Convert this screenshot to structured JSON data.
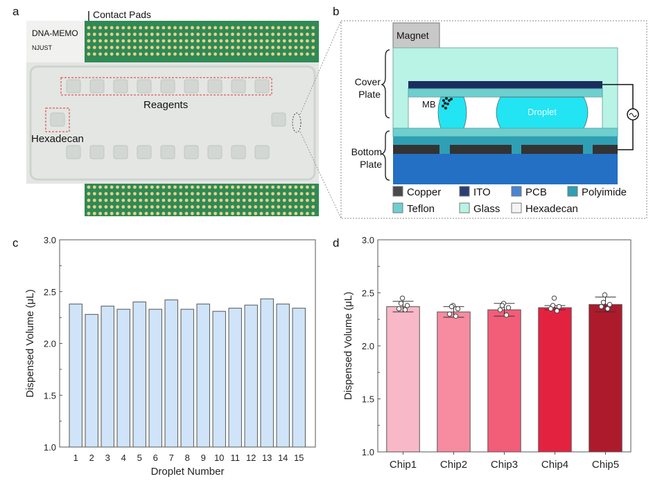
{
  "panels": {
    "a": {
      "label": "a",
      "chip_label_line1": "DNA-MEMO",
      "chip_label_line2": "NJUST",
      "annotations": {
        "contact_pads": "Contact Pads",
        "reagents": "Reagents",
        "hexadecan": "Hexadecan"
      }
    },
    "b": {
      "label": "b",
      "magnet": "Magnet",
      "cover_plate_1": "Cover",
      "cover_plate_2": "Plate",
      "bottom_plate_1": "Bottom",
      "bottom_plate_2": "Plate",
      "mb": "MB",
      "droplet": "Droplet",
      "legend": [
        {
          "label": "Copper",
          "color": "#4a4a4a"
        },
        {
          "label": "ITO",
          "color": "#2b3f73"
        },
        {
          "label": "PCB",
          "color": "#4a86d0"
        },
        {
          "label": "Polyimide",
          "color": "#2f9fb3"
        },
        {
          "label": "Teflon",
          "color": "#6fcfcf"
        },
        {
          "label": "Glass",
          "color": "#b8f3e6"
        },
        {
          "label": "Hexadecan",
          "color": "#f4f4f4"
        }
      ]
    },
    "c": {
      "label": "c"
    },
    "d": {
      "label": "d"
    }
  },
  "chart_data": [
    {
      "type": "bar",
      "panel": "c",
      "title": "",
      "xlabel": "Droplet Number",
      "ylabel": "Dispensed Volume (μL)",
      "ylim": [
        1.0,
        3.0
      ],
      "yticks": [
        "1.0",
        "1.5",
        "2.0",
        "2.5",
        "3.0"
      ],
      "categories": [
        "1",
        "2",
        "3",
        "4",
        "5",
        "6",
        "7",
        "8",
        "9",
        "10",
        "11",
        "12",
        "13",
        "14",
        "15"
      ],
      "values": [
        2.38,
        2.28,
        2.36,
        2.33,
        2.4,
        2.33,
        2.42,
        2.33,
        2.38,
        2.31,
        2.34,
        2.37,
        2.43,
        2.38,
        2.34
      ],
      "bar_color": "#cfe4f8"
    },
    {
      "type": "bar",
      "panel": "d",
      "title": "",
      "xlabel": "",
      "ylabel": "Dispensed Volume (μL)",
      "ylim": [
        1.0,
        3.0
      ],
      "yticks": [
        "1.0",
        "1.5",
        "2.0",
        "2.5",
        "3.0"
      ],
      "categories": [
        "Chip1",
        "Chip2",
        "Chip3",
        "Chip4",
        "Chip5"
      ],
      "values": [
        2.37,
        2.32,
        2.34,
        2.36,
        2.39
      ],
      "errors": [
        0.05,
        0.05,
        0.06,
        0.02,
        0.07
      ],
      "points": [
        [
          2.45,
          2.4,
          2.38,
          2.35,
          2.34
        ],
        [
          2.38,
          2.37,
          2.35,
          2.3,
          2.28
        ],
        [
          2.4,
          2.38,
          2.36,
          2.34,
          2.29
        ],
        [
          2.45,
          2.38,
          2.37,
          2.35,
          2.33
        ],
        [
          2.48,
          2.41,
          2.39,
          2.37,
          2.35
        ]
      ],
      "colors": [
        "#f9b8c8",
        "#f78ba0",
        "#f25d78",
        "#e32240",
        "#ad1a2c"
      ]
    }
  ]
}
